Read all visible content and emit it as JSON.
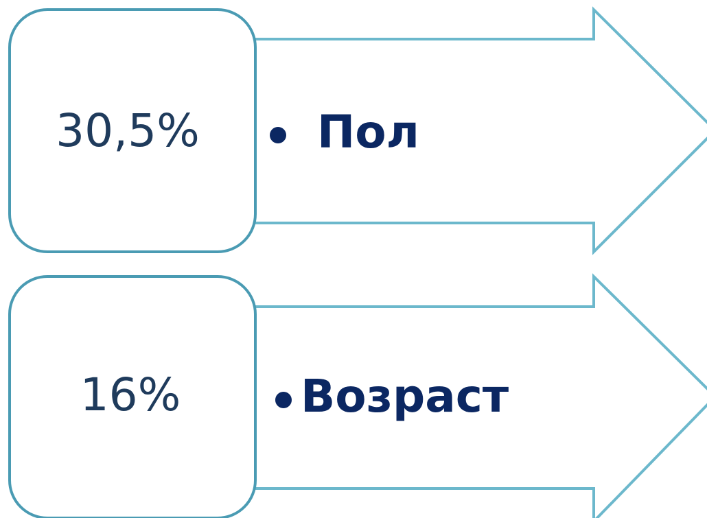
{
  "items": [
    {
      "value": "30,5%",
      "label": "Пол"
    },
    {
      "value": "16%",
      "label": "Возраст"
    }
  ]
}
